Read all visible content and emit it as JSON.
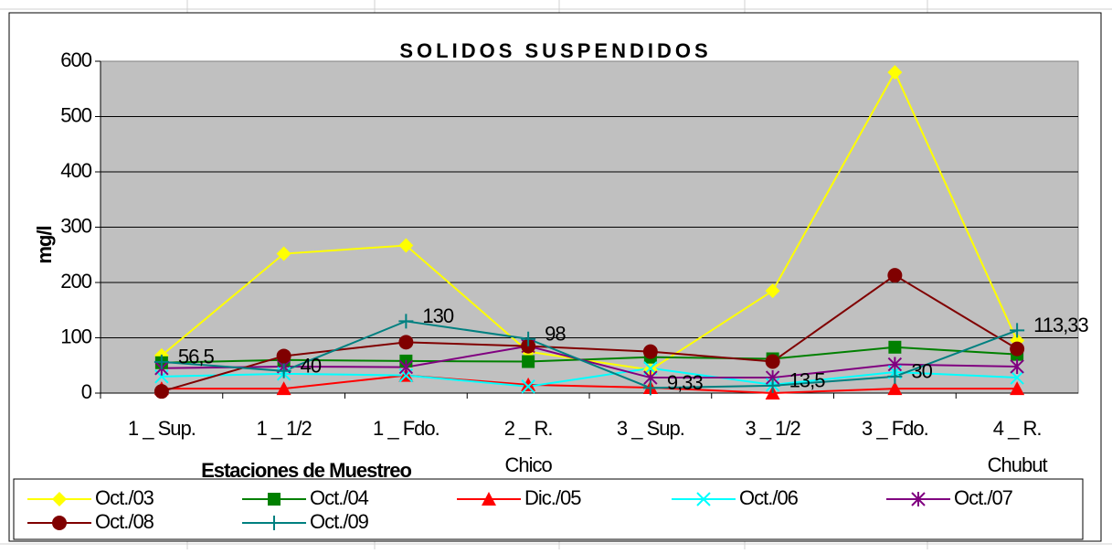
{
  "chart_data": {
    "type": "line",
    "title": "SOLIDOS SUSPENDIDOS",
    "y_label": "mg/l",
    "x_label": "Estaciones de Muestreo",
    "categories": [
      "1 _ Sup.",
      "1 _ 1/2",
      "1 _ Fdo.",
      "2 _ R. Chico",
      "3 _ Sup.",
      "3 _ 1/2",
      "3 _ Fdo.",
      "4 _ R. Chubut"
    ],
    "ylim": [
      0,
      600
    ],
    "yticks": [
      0,
      100,
      200,
      300,
      400,
      500,
      600
    ],
    "grid": true,
    "legend": "bottom",
    "series": [
      {
        "name": "Oct./03",
        "color": "#ffff00",
        "marker": "diamond",
        "values": [
          68,
          252,
          267,
          75,
          42,
          185,
          580,
          95
        ]
      },
      {
        "name": "Oct./04",
        "color": "#008000",
        "marker": "square",
        "values": [
          55,
          60,
          58,
          57,
          65,
          62,
          83,
          70
        ]
      },
      {
        "name": "Dic./05",
        "color": "#ff0000",
        "marker": "triangle",
        "values": [
          8,
          8,
          32,
          15,
          10,
          0,
          8,
          8
        ]
      },
      {
        "name": "Oct./06",
        "color": "#00ffff",
        "marker": "x",
        "values": [
          30,
          35,
          32,
          12,
          45,
          15,
          38,
          28
        ]
      },
      {
        "name": "Oct./07",
        "color": "#800080",
        "marker": "asterisk",
        "values": [
          45,
          48,
          47,
          85,
          28,
          28,
          52,
          48
        ]
      },
      {
        "name": "Oct./08",
        "color": "#800000",
        "marker": "circle",
        "values": [
          3,
          67,
          92,
          85,
          75,
          57,
          213,
          80
        ]
      },
      {
        "name": "Oct./09",
        "color": "#008080",
        "marker": "plus",
        "values": [
          56.5,
          40,
          130,
          98,
          9.33,
          13.5,
          30,
          113.33
        ],
        "value_labels": [
          "56,5",
          "40",
          "130",
          "98",
          "9,33",
          "13,5",
          "30",
          "113,33"
        ]
      }
    ]
  }
}
